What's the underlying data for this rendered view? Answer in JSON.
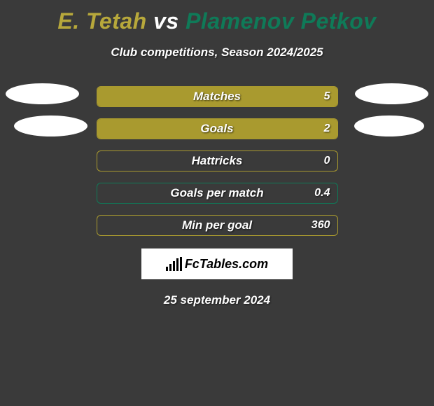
{
  "title": {
    "player1": "E. Tetah",
    "vs": "vs",
    "player2": "Plamenov Petkov",
    "player1_color": "#b7a83b",
    "vs_color": "#ffffff",
    "player2_color": "#0f7a58"
  },
  "subtitle": "Club competitions, Season 2024/2025",
  "stats": [
    {
      "label": "Matches",
      "value": "5",
      "fill_pct": 100,
      "fill_color": "#a99a2f",
      "border_color": "#a99a2f"
    },
    {
      "label": "Goals",
      "value": "2",
      "fill_pct": 100,
      "fill_color": "#a99a2f",
      "border_color": "#a99a2f"
    },
    {
      "label": "Hattricks",
      "value": "0",
      "fill_pct": 0,
      "fill_color": "#a99a2f",
      "border_color": "#a99a2f"
    },
    {
      "label": "Goals per match",
      "value": "0.4",
      "fill_pct": 0,
      "fill_color": "#a99a2f",
      "border_color": "#0f7a58"
    },
    {
      "label": "Min per goal",
      "value": "360",
      "fill_pct": 0,
      "fill_color": "#a99a2f",
      "border_color": "#a99a2f"
    }
  ],
  "logo_text": "FcTables.com",
  "date": "25 september 2024",
  "colors": {
    "background": "#3a3a3a",
    "photo_bg": "#ffffff"
  }
}
